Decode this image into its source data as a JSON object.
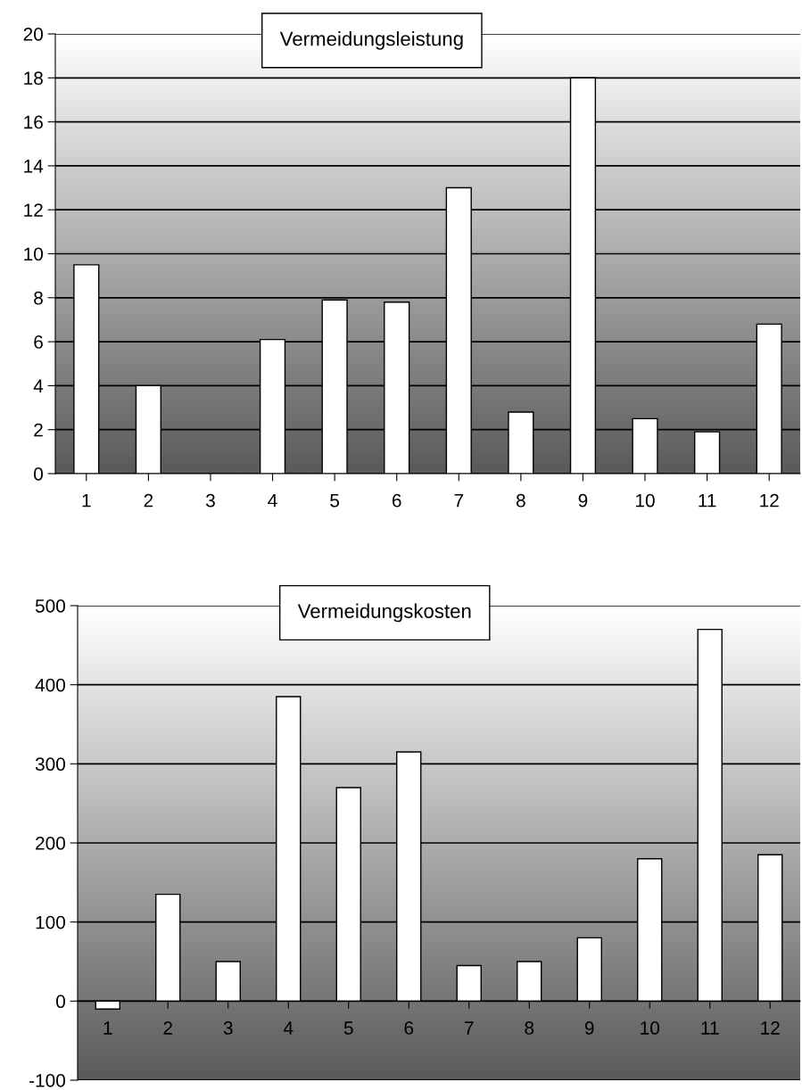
{
  "chart_data": [
    {
      "type": "bar",
      "title": "Vermeidungsleistung",
      "categories": [
        "1",
        "2",
        "3",
        "4",
        "5",
        "6",
        "7",
        "8",
        "9",
        "10",
        "11",
        "12"
      ],
      "values": [
        9.5,
        4,
        null,
        6.1,
        7.9,
        7.8,
        13,
        2.8,
        18,
        2.5,
        1.9,
        6.8
      ],
      "color": "#ffffff",
      "ylim": [
        0,
        20
      ],
      "yticks": [
        0,
        2,
        4,
        6,
        8,
        10,
        12,
        14,
        16,
        18,
        20
      ],
      "grid": "y"
    },
    {
      "type": "bar",
      "title": "Vermeidungskosten",
      "categories": [
        "1",
        "2",
        "3",
        "4",
        "5",
        "6",
        "7",
        "8",
        "9",
        "10",
        "11",
        "12"
      ],
      "values": [
        -10,
        135,
        50,
        385,
        270,
        315,
        45,
        50,
        80,
        180,
        470,
        185
      ],
      "color": "#ffffff",
      "ylim": [
        -100,
        500
      ],
      "yticks": [
        -100,
        0,
        100,
        200,
        300,
        400,
        500
      ],
      "grid": "y"
    }
  ]
}
